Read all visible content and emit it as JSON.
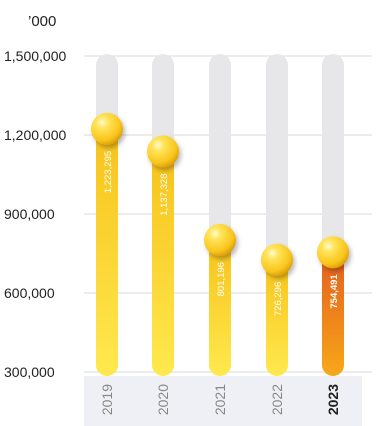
{
  "chart_data": {
    "type": "bar",
    "unit_label": "’000",
    "y_ticks": [
      "1,500,000",
      "1,200,000",
      "900,000",
      "600,000",
      "300,000"
    ],
    "y_tick_values": [
      1500000,
      1200000,
      900000,
      600000,
      300000
    ],
    "ylim": [
      300000,
      1500000
    ],
    "categories": [
      "2019",
      "2020",
      "2021",
      "2022",
      "2023"
    ],
    "values": [
      1223295,
      1137328,
      801196,
      726296,
      754491
    ],
    "value_labels": [
      "1,223,295",
      "1,137,328",
      "801,196",
      "726,296",
      "754,491"
    ],
    "highlight_category": "2023",
    "grid": true,
    "colors": {
      "track": "#e7e7e9",
      "bar_top": "#f7c21b",
      "bar_bottom": "#ffe94e",
      "highlight_top": "#e45d1c",
      "highlight_bottom": "#f7a81a",
      "ball": "#f9c51b",
      "gridline": "#d9d9d9",
      "axis_band": "#eef0f6",
      "text": "#222222",
      "category_text": "#888888"
    }
  }
}
